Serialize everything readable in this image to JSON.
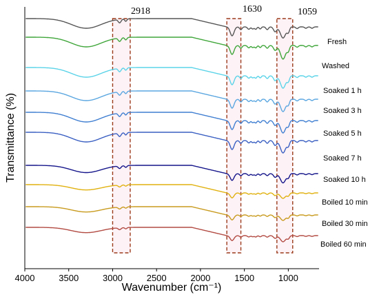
{
  "chart_data": {
    "type": "line",
    "xlabel": "Wavenumber (cm⁻¹)",
    "ylabel": "Transmittance (%)",
    "x_ticks": [
      4000,
      3500,
      3000,
      2500,
      2000,
      1500,
      1000
    ],
    "xlim": [
      4000,
      650
    ],
    "x_reversed": true,
    "grid": false,
    "highlight_bands": [
      {
        "label": "2918",
        "range": [
          3000,
          2800
        ]
      },
      {
        "label": "1630",
        "range": [
          1700,
          1540
        ]
      },
      {
        "label": "1059",
        "range": [
          1130,
          950
        ]
      }
    ],
    "series": [
      {
        "name": "Fresh",
        "color": "#555555"
      },
      {
        "name": "Washed",
        "color": "#3fa63a"
      },
      {
        "name": "Soaked 1 h",
        "color": "#5ad3e8"
      },
      {
        "name": "Soaked 3 h",
        "color": "#5aa6e0"
      },
      {
        "name": "Soaked 5 h",
        "color": "#3f7ed1"
      },
      {
        "name": "Soaked 7 h",
        "color": "#3a5fc2"
      },
      {
        "name": "Soaked 10 h",
        "color": "#14148a"
      },
      {
        "name": "Boiled 10 min",
        "color": "#e0b10f"
      },
      {
        "name": "Boiled 30 min",
        "color": "#c89a1d"
      },
      {
        "name": "Boiled 60 min",
        "color": "#b24a42"
      }
    ]
  }
}
